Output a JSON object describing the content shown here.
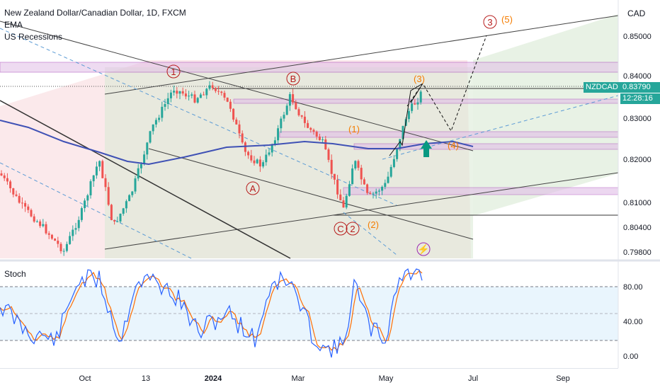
{
  "legend": {
    "title": "New Zealand Dollar/Canadian Dollar, 1D, FXCM",
    "ema": "EMA",
    "recessions": "US Recessions"
  },
  "oscillator": {
    "name": "Stoch"
  },
  "price_axis": {
    "currency": "CAD",
    "labels": [
      "0.85000",
      "0.84000",
      "0.83000",
      "0.82000",
      "0.81000",
      "0.80400",
      "0.79800"
    ],
    "stoch_labels": [
      "80.00",
      "40.00",
      "0.00"
    ]
  },
  "current": {
    "symbol": "NZDCAD",
    "price": "0.83790",
    "countdown": "12:28:16"
  },
  "time_axis": {
    "labels": [
      {
        "text": "Oct",
        "bold": false
      },
      {
        "text": "13",
        "bold": false
      },
      {
        "text": "2024",
        "bold": true
      },
      {
        "text": "Mar",
        "bold": false
      },
      {
        "text": "May",
        "bold": false
      },
      {
        "text": "Jul",
        "bold": false
      },
      {
        "text": "Sep",
        "bold": false
      }
    ]
  },
  "wave_labels": {
    "circled": [
      "1",
      "B",
      "A",
      "C",
      "2",
      "3"
    ],
    "orange": [
      "(3)",
      "(1)",
      "(4)",
      "(2)",
      "(5)"
    ]
  },
  "colors": {
    "up": "#26a69a",
    "down": "#ef5350",
    "ema": "#3f51b5",
    "stoch_k": "#2962ff",
    "stoch_d": "#ff6d00",
    "badge": "#26a69a",
    "orange": "#f57c00",
    "wave": "#b71c1c"
  }
}
